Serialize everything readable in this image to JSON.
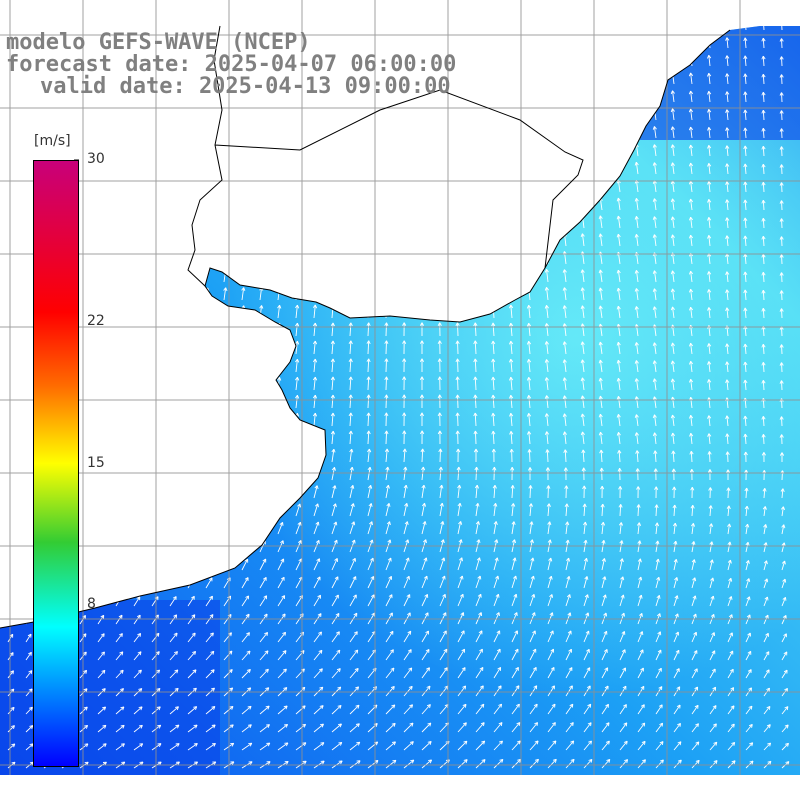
{
  "title": {
    "line1": "modelo GEFS-WAVE (NCEP)",
    "line2": "forecast date: 2025-04-07 06:00:00",
    "line3": "valid date: 2025-04-13 09:00:00"
  },
  "colorbar": {
    "unit": "[m/s]",
    "min": 0,
    "max": 30,
    "ticks": [
      {
        "value": 30,
        "label": "30"
      },
      {
        "value": 22,
        "label": "22"
      },
      {
        "value": 15,
        "label": "15"
      },
      {
        "value": 8,
        "label": "8"
      }
    ],
    "colors": [
      "#0000ff",
      "#00ffff",
      "#33cc33",
      "#ffff00",
      "#ff6a00",
      "#ff0000",
      "#c8007a"
    ]
  },
  "map": {
    "land_color": "#ffffff",
    "coastline_color": "#000000",
    "grid_color": "#909090",
    "field_colors": {
      "low": "#0a55f0",
      "high": "#5ee8f5"
    },
    "arrow_color": "#ffffff"
  },
  "chart_data": {
    "type": "heatmap",
    "variable": "wind speed",
    "unit": "[m/s]",
    "value_range": [
      0,
      30
    ],
    "field_min_estimate": 3,
    "field_max_estimate": 9
  }
}
